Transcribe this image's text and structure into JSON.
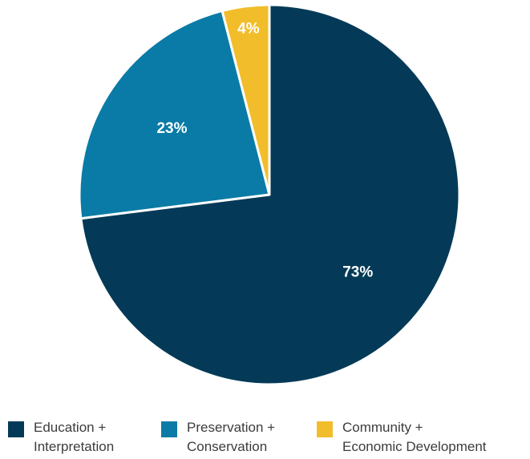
{
  "chart_data": {
    "type": "pie",
    "title": "",
    "slices": [
      {
        "label": "Education + Interpretation",
        "value": 73,
        "display": "73%",
        "color": "#043a57"
      },
      {
        "label": "Preservation + Conservation",
        "value": 23,
        "display": "23%",
        "color": "#0a7ba6"
      },
      {
        "label": "Community + Economic Development",
        "value": 4,
        "display": "4%",
        "color": "#f2bd2a"
      }
    ],
    "legend_position": "bottom"
  },
  "legend": [
    {
      "line1": "Education +",
      "line2": "Interpretation",
      "color": "#043a57"
    },
    {
      "line1": "Preservation +",
      "line2": "Conservation",
      "color": "#0a7ba6"
    },
    {
      "line1": "Community +",
      "line2": "Economic Development",
      "color": "#f2bd2a"
    }
  ]
}
